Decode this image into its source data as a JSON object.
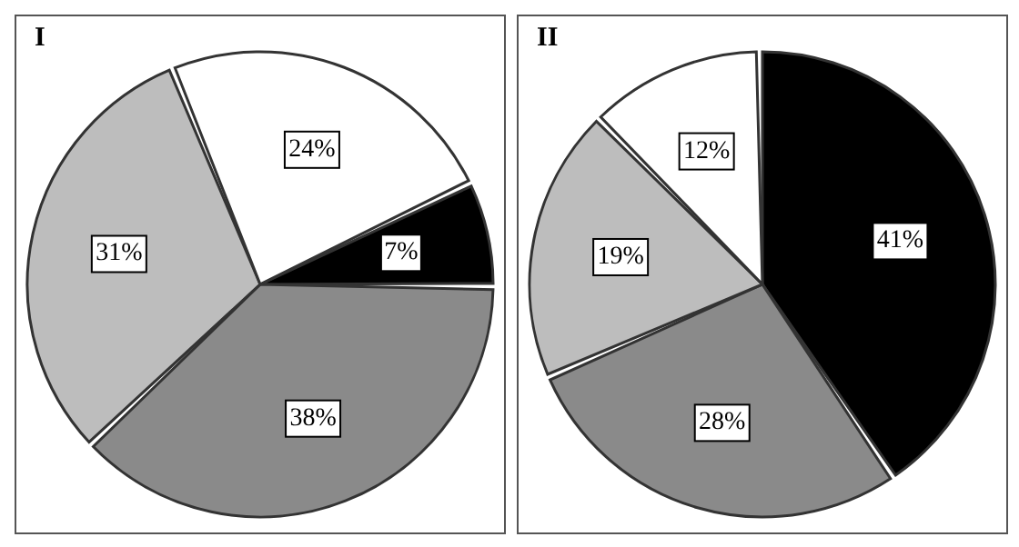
{
  "chart_data": [
    {
      "type": "pie",
      "title": "I",
      "categories": [
        null,
        null,
        null,
        null
      ],
      "values": [
        7,
        38,
        31,
        24
      ],
      "value_labels": [
        "7%",
        "38%",
        "31%",
        "24%"
      ],
      "colors": [
        "#000000",
        "#8a8a8a",
        "#bdbdbd",
        "#ffffff"
      ]
    },
    {
      "type": "pie",
      "title": "II",
      "categories": [
        null,
        null,
        null,
        null
      ],
      "values": [
        41,
        28,
        19,
        12
      ],
      "value_labels": [
        "41%",
        "28%",
        "19%",
        "12%"
      ],
      "colors": [
        "#000000",
        "#8a8a8a",
        "#bdbdbd",
        "#ffffff"
      ]
    }
  ]
}
